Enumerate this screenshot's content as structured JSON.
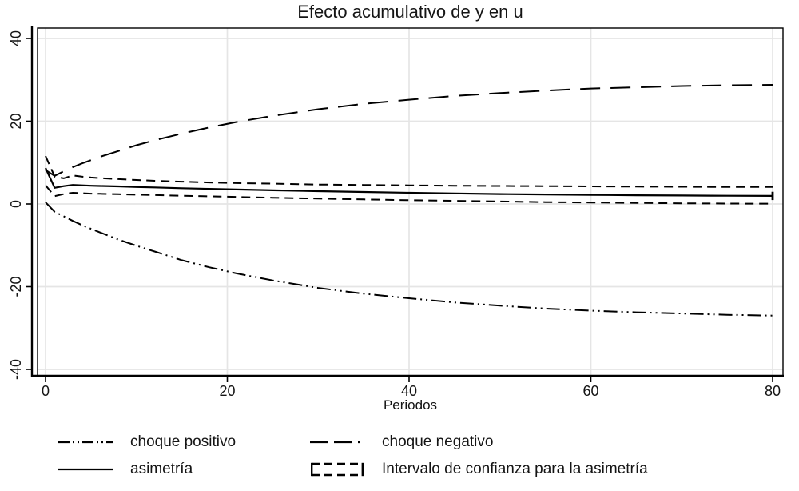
{
  "title": "Efecto acumulativo de y en u",
  "chart_data": {
    "type": "line",
    "title": "Efecto acumulativo de y en u",
    "xlabel": "Periodos",
    "ylabel": "",
    "xlim": [
      -0.9,
      81.2
    ],
    "ylim": [
      -41.5,
      42.5
    ],
    "x_ticks": [
      0,
      20,
      40,
      60,
      80
    ],
    "y_ticks": [
      -40,
      -20,
      0,
      20,
      40
    ],
    "grid": true,
    "legend_position": "bottom",
    "colors": {
      "line": "#000000",
      "grid": "#e5e5e5",
      "background": "#ffffff",
      "text": "#141414"
    },
    "series": [
      {
        "name": "choque positivo",
        "style": "dash-dot-dot",
        "dash": "17 5 2 5 2 5",
        "width": 2,
        "points": [
          [
            0,
            0.4
          ],
          [
            1,
            -1.9
          ],
          [
            2,
            -3.0
          ],
          [
            3,
            -4.1
          ],
          [
            4,
            -5.1
          ],
          [
            5,
            -6.0
          ],
          [
            6,
            -6.9
          ],
          [
            8,
            -8.6
          ],
          [
            10,
            -10.1
          ],
          [
            12,
            -11.5
          ],
          [
            15,
            -13.6
          ],
          [
            18,
            -15.3
          ],
          [
            21,
            -16.8
          ],
          [
            25,
            -18.5
          ],
          [
            30,
            -20.3
          ],
          [
            35,
            -21.7
          ],
          [
            40,
            -22.8
          ],
          [
            45,
            -23.8
          ],
          [
            50,
            -24.6
          ],
          [
            55,
            -25.3
          ],
          [
            60,
            -25.8
          ],
          [
            65,
            -26.2
          ],
          [
            70,
            -26.5
          ],
          [
            75,
            -26.8
          ],
          [
            80,
            -27.0
          ]
        ]
      },
      {
        "name": "choque negativo",
        "style": "longdash",
        "dash": "25 13",
        "width": 2,
        "points": [
          [
            0,
            8.2
          ],
          [
            1,
            6.8
          ],
          [
            2,
            7.9
          ],
          [
            3,
            8.9
          ],
          [
            4,
            9.8
          ],
          [
            5,
            10.6
          ],
          [
            6,
            11.4
          ],
          [
            8,
            12.8
          ],
          [
            10,
            14.2
          ],
          [
            12,
            15.4
          ],
          [
            15,
            17.0
          ],
          [
            18,
            18.5
          ],
          [
            21,
            19.8
          ],
          [
            25,
            21.3
          ],
          [
            30,
            22.9
          ],
          [
            35,
            24.2
          ],
          [
            40,
            25.2
          ],
          [
            45,
            26.1
          ],
          [
            50,
            26.8
          ],
          [
            55,
            27.4
          ],
          [
            60,
            27.9
          ],
          [
            65,
            28.2
          ],
          [
            70,
            28.5
          ],
          [
            75,
            28.7
          ],
          [
            80,
            28.8
          ]
        ]
      },
      {
        "name": "asimetría",
        "style": "solid",
        "dash": "",
        "width": 2.2,
        "end_cap_halfwidth": 1.0,
        "points": [
          [
            0,
            8.7
          ],
          [
            1,
            3.9
          ],
          [
            2,
            4.3
          ],
          [
            3,
            4.6
          ],
          [
            4,
            4.5
          ],
          [
            5,
            4.4
          ],
          [
            6,
            4.35
          ],
          [
            8,
            4.25
          ],
          [
            10,
            4.1
          ],
          [
            12,
            4.0
          ],
          [
            15,
            3.8
          ],
          [
            18,
            3.65
          ],
          [
            21,
            3.5
          ],
          [
            25,
            3.3
          ],
          [
            30,
            3.1
          ],
          [
            35,
            2.9
          ],
          [
            40,
            2.7
          ],
          [
            45,
            2.55
          ],
          [
            50,
            2.4
          ],
          [
            55,
            2.3
          ],
          [
            60,
            2.2
          ],
          [
            65,
            2.1
          ],
          [
            70,
            2.05
          ],
          [
            75,
            2.0
          ],
          [
            80,
            1.95
          ]
        ]
      },
      {
        "name": "Intervalo de confianza para la asimetría",
        "style": "dashed-band",
        "dash": "11 7",
        "width": 2,
        "band": true,
        "upper": [
          [
            0,
            11.6
          ],
          [
            1,
            6.6
          ],
          [
            2,
            6.2
          ],
          [
            3,
            6.9
          ],
          [
            4,
            6.6
          ],
          [
            5,
            6.4
          ],
          [
            6,
            6.25
          ],
          [
            8,
            6.0
          ],
          [
            10,
            5.8
          ],
          [
            12,
            5.6
          ],
          [
            15,
            5.4
          ],
          [
            18,
            5.2
          ],
          [
            21,
            5.05
          ],
          [
            25,
            4.9
          ],
          [
            30,
            4.7
          ],
          [
            35,
            4.6
          ],
          [
            40,
            4.5
          ],
          [
            45,
            4.4
          ],
          [
            50,
            4.35
          ],
          [
            55,
            4.3
          ],
          [
            60,
            4.25
          ],
          [
            65,
            4.2
          ],
          [
            70,
            4.15
          ],
          [
            75,
            4.1
          ],
          [
            80,
            4.1
          ]
        ],
        "lower": [
          [
            0,
            4.5
          ],
          [
            1,
            1.9
          ],
          [
            2,
            2.4
          ],
          [
            3,
            2.7
          ],
          [
            4,
            2.6
          ],
          [
            5,
            2.5
          ],
          [
            6,
            2.45
          ],
          [
            8,
            2.35
          ],
          [
            10,
            2.25
          ],
          [
            12,
            2.15
          ],
          [
            15,
            2.0
          ],
          [
            18,
            1.85
          ],
          [
            21,
            1.7
          ],
          [
            25,
            1.5
          ],
          [
            30,
            1.3
          ],
          [
            35,
            1.1
          ],
          [
            40,
            0.9
          ],
          [
            45,
            0.75
          ],
          [
            50,
            0.6
          ],
          [
            55,
            0.45
          ],
          [
            60,
            0.35
          ],
          [
            65,
            0.25
          ],
          [
            70,
            0.15
          ],
          [
            75,
            0.1
          ],
          [
            80,
            0.05
          ]
        ]
      }
    ],
    "legend": [
      {
        "label": "choque positivo",
        "sample": "line",
        "dash": "14 4 2 4 2 4"
      },
      {
        "label": "choque negativo",
        "sample": "line",
        "dash": "22 8 22 8 2 200"
      },
      {
        "label": "asimetría",
        "sample": "line",
        "dash": ""
      },
      {
        "label": "Intervalo de confianza para la asimetría",
        "sample": "box",
        "dash": "10 6"
      }
    ]
  }
}
